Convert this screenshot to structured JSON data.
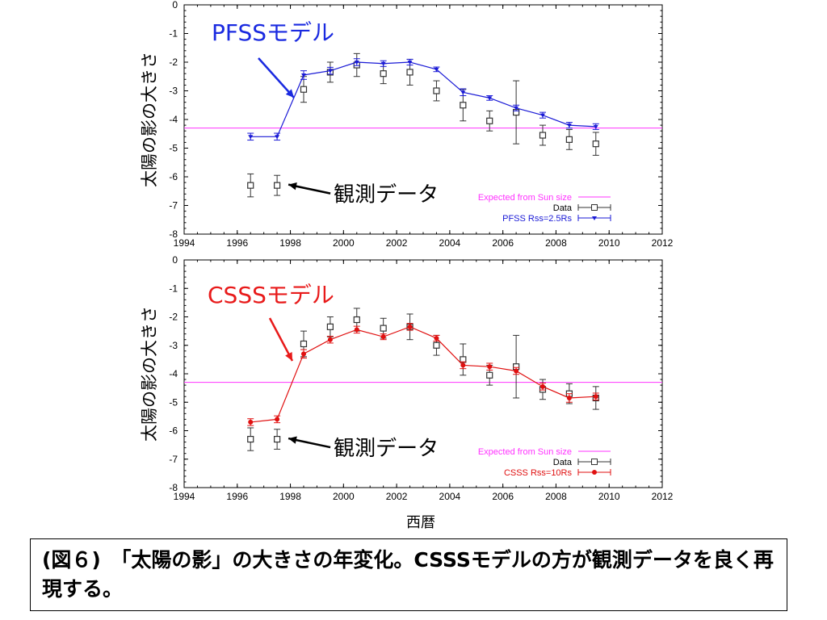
{
  "caption": "(図６)　「太陽の影」の大きさの年変化。CSSSモデルの方が観測データを良く再現する。",
  "xlabel": "西暦",
  "colors": {
    "model_top": "#1a1ad6",
    "model_bottom": "#e01010",
    "expected": "#ff33ff",
    "data": "#333333",
    "annot_red": "#e81a1a",
    "annot_blue": "#1a2ae0"
  },
  "chart_data": [
    {
      "type": "line",
      "ylabel": "太陽の影の大きさ",
      "xlim": [
        1994,
        2012
      ],
      "ylim": [
        -8,
        0
      ],
      "x_ticks": [
        "1994",
        "1996",
        "1998",
        "2000",
        "2002",
        "2004",
        "2006",
        "2008",
        "2010",
        "2012"
      ],
      "y_ticks": [
        "0",
        "-1",
        "-2",
        "-3",
        "-4",
        "-5",
        "-6",
        "-7",
        "-8"
      ],
      "annotation_model": "PFSSモデル",
      "annotation_obs": "観測データ",
      "legend": [
        "Expected from Sun size",
        "Data",
        "PFSS Rss=2.5Rs"
      ],
      "expected_value": -4.3,
      "series": [
        {
          "name": "Data",
          "x": [
            1996.5,
            1997.5,
            1998.5,
            1999.5,
            2000.5,
            2001.5,
            2002.5,
            2003.5,
            2004.5,
            2005.5,
            2006.5,
            2007.5,
            2008.5,
            2009.5
          ],
          "y": [
            -6.3,
            -6.3,
            -2.95,
            -2.35,
            -2.1,
            -2.4,
            -2.35,
            -3.0,
            -3.5,
            -4.05,
            -3.75,
            -4.55,
            -4.7,
            -4.85
          ],
          "err": [
            0.4,
            0.35,
            0.45,
            0.35,
            0.4,
            0.35,
            0.45,
            0.35,
            0.55,
            0.35,
            1.1,
            0.35,
            0.35,
            0.4
          ]
        },
        {
          "name": "PFSS Rss=2.5Rs",
          "x": [
            1996.5,
            1997.5,
            1998.5,
            1999.5,
            2000.5,
            2001.5,
            2002.5,
            2003.5,
            2004.5,
            2005.5,
            2006.5,
            2007.5,
            2008.5,
            2009.5
          ],
          "y": [
            -4.6,
            -4.6,
            -2.45,
            -2.3,
            -2.0,
            -2.05,
            -2.0,
            -2.25,
            -3.05,
            -3.25,
            -3.6,
            -3.85,
            -4.2,
            -4.25
          ],
          "err": [
            0.12,
            0.12,
            0.15,
            0.12,
            0.12,
            0.1,
            0.1,
            0.08,
            0.12,
            0.08,
            0.1,
            0.1,
            0.1,
            0.1
          ]
        }
      ]
    },
    {
      "type": "line",
      "ylabel": "太陽の影の大きさ",
      "xlim": [
        1994,
        2012
      ],
      "ylim": [
        -8,
        0
      ],
      "x_ticks": [
        "1994",
        "1996",
        "1998",
        "2000",
        "2002",
        "2004",
        "2006",
        "2008",
        "2010",
        "2012"
      ],
      "y_ticks": [
        "0",
        "-1",
        "-2",
        "-3",
        "-4",
        "-5",
        "-6",
        "-7",
        "-8"
      ],
      "annotation_model": "CSSSモデル",
      "annotation_obs": "観測データ",
      "legend": [
        "Expected from Sun size",
        "Data",
        "CSSS Rss=10Rs"
      ],
      "expected_value": -4.3,
      "series": [
        {
          "name": "Data",
          "x": [
            1996.5,
            1997.5,
            1998.5,
            1999.5,
            2000.5,
            2001.5,
            2002.5,
            2003.5,
            2004.5,
            2005.5,
            2006.5,
            2007.5,
            2008.5,
            2009.5
          ],
          "y": [
            -6.3,
            -6.3,
            -2.95,
            -2.35,
            -2.1,
            -2.4,
            -2.35,
            -3.0,
            -3.5,
            -4.05,
            -3.75,
            -4.55,
            -4.7,
            -4.85
          ],
          "err": [
            0.4,
            0.35,
            0.45,
            0.35,
            0.4,
            0.35,
            0.45,
            0.35,
            0.55,
            0.35,
            1.1,
            0.35,
            0.35,
            0.4
          ]
        },
        {
          "name": "CSSS Rss=10Rs",
          "x": [
            1996.5,
            1997.5,
            1998.5,
            1999.5,
            2000.5,
            2001.5,
            2002.5,
            2003.5,
            2004.5,
            2005.5,
            2006.5,
            2007.5,
            2008.5,
            2009.5
          ],
          "y": [
            -5.7,
            -5.6,
            -3.3,
            -2.8,
            -2.45,
            -2.7,
            -2.35,
            -2.75,
            -3.7,
            -3.75,
            -3.9,
            -4.45,
            -4.85,
            -4.8
          ],
          "err": [
            0.12,
            0.12,
            0.15,
            0.12,
            0.12,
            0.1,
            0.12,
            0.1,
            0.12,
            0.12,
            0.12,
            0.12,
            0.15,
            0.12
          ]
        }
      ]
    }
  ]
}
